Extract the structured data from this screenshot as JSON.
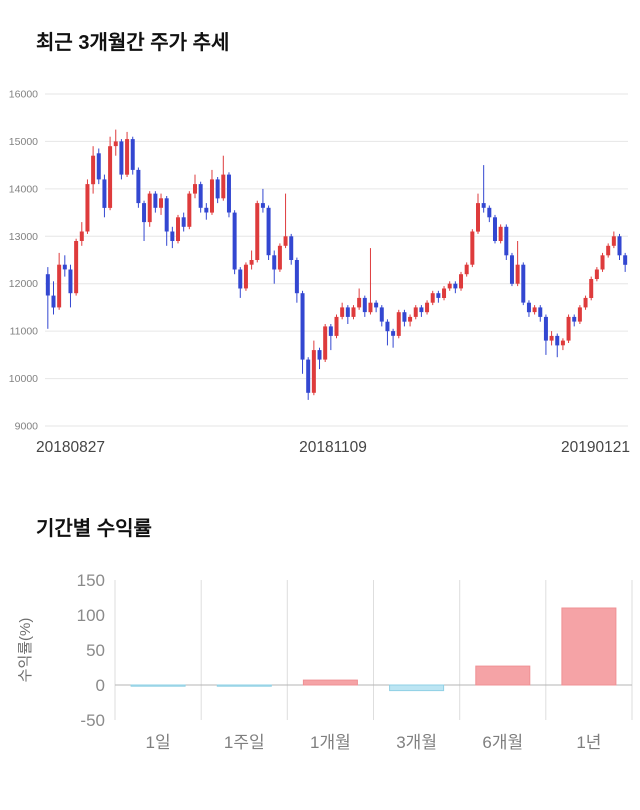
{
  "sections": {
    "price_trend": {
      "title": "최근 3개월간 주가 추세"
    },
    "period_returns": {
      "title": "기간별 수익률"
    }
  },
  "chart_data": [
    {
      "type": "candlestick",
      "title": "최근 3개월간 주가 추세",
      "ylim": [
        9000,
        16000
      ],
      "yticks": [
        9000,
        10000,
        11000,
        12000,
        13000,
        14000,
        15000,
        16000
      ],
      "xtick_labels": [
        "20180827",
        "20181109",
        "20190121"
      ],
      "up_color": "#de3b3c",
      "down_color": "#3347d1",
      "grid_color": "#e6e6e6",
      "axis_text_color": "#828282",
      "candles": [
        [
          12200,
          12350,
          11050,
          11750
        ],
        [
          11750,
          12050,
          11350,
          11500
        ],
        [
          11500,
          12650,
          11450,
          12400
        ],
        [
          12400,
          12600,
          12150,
          12300
        ],
        [
          12300,
          12400,
          11500,
          11800
        ],
        [
          11800,
          12950,
          11750,
          12900
        ],
        [
          12900,
          13300,
          12800,
          13100
        ],
        [
          13100,
          14200,
          13050,
          14100
        ],
        [
          14100,
          14900,
          13900,
          14700
        ],
        [
          14750,
          14850,
          14100,
          14200
        ],
        [
          14200,
          14300,
          13400,
          13600
        ],
        [
          13600,
          15100,
          13550,
          14900
        ],
        [
          14900,
          15250,
          14700,
          15000
        ],
        [
          15000,
          15050,
          14200,
          14300
        ],
        [
          14300,
          15200,
          14250,
          15050
        ],
        [
          15050,
          15100,
          14300,
          14400
        ],
        [
          14400,
          14450,
          13600,
          13700
        ],
        [
          13700,
          13750,
          12900,
          13300
        ],
        [
          13300,
          13950,
          13200,
          13900
        ],
        [
          13900,
          13950,
          13500,
          13600
        ],
        [
          13600,
          13900,
          13450,
          13800
        ],
        [
          13800,
          13850,
          12800,
          13100
        ],
        [
          13100,
          13200,
          12750,
          12900
        ],
        [
          12900,
          13450,
          12850,
          13400
        ],
        [
          13400,
          13500,
          13100,
          13200
        ],
        [
          13200,
          13950,
          13150,
          13900
        ],
        [
          13900,
          14300,
          13800,
          14100
        ],
        [
          14100,
          14150,
          13500,
          13600
        ],
        [
          13600,
          13700,
          13350,
          13500
        ],
        [
          13500,
          14400,
          13450,
          14200
        ],
        [
          14200,
          14250,
          13700,
          13800
        ],
        [
          13800,
          14700,
          13750,
          14300
        ],
        [
          14300,
          14350,
          13400,
          13500
        ],
        [
          13500,
          13550,
          12200,
          12300
        ],
        [
          12300,
          12350,
          11700,
          11900
        ],
        [
          11900,
          12450,
          11850,
          12400
        ],
        [
          12400,
          12700,
          12300,
          12500
        ],
        [
          12500,
          13750,
          12450,
          13700
        ],
        [
          13700,
          14000,
          13500,
          13600
        ],
        [
          13600,
          13650,
          12500,
          12600
        ],
        [
          12600,
          12700,
          12000,
          12300
        ],
        [
          12300,
          12850,
          12250,
          12800
        ],
        [
          12800,
          13900,
          12750,
          13000
        ],
        [
          13000,
          13050,
          12400,
          12500
        ],
        [
          12500,
          12550,
          11600,
          11800
        ],
        [
          11800,
          11850,
          10100,
          10400
        ],
        [
          10400,
          10450,
          9550,
          9700
        ],
        [
          9700,
          10800,
          9650,
          10600
        ],
        [
          10600,
          10650,
          10200,
          10400
        ],
        [
          10400,
          11150,
          10350,
          11100
        ],
        [
          11100,
          11150,
          10600,
          10900
        ],
        [
          10900,
          11350,
          10850,
          11300
        ],
        [
          11300,
          11600,
          11250,
          11500
        ],
        [
          11500,
          11550,
          11150,
          11300
        ],
        [
          11300,
          11550,
          11250,
          11500
        ],
        [
          11500,
          11900,
          11450,
          11700
        ],
        [
          11700,
          11750,
          11300,
          11400
        ],
        [
          11400,
          12750,
          11350,
          11600
        ],
        [
          11600,
          11650,
          11400,
          11500
        ],
        [
          11500,
          11550,
          11100,
          11200
        ],
        [
          11200,
          11250,
          10700,
          11000
        ],
        [
          11000,
          11050,
          10650,
          10900
        ],
        [
          10900,
          11450,
          10850,
          11400
        ],
        [
          11400,
          11450,
          11100,
          11200
        ],
        [
          11200,
          11350,
          11100,
          11300
        ],
        [
          11300,
          11550,
          11250,
          11500
        ],
        [
          11500,
          11550,
          11300,
          11400
        ],
        [
          11400,
          11650,
          11350,
          11600
        ],
        [
          11600,
          11850,
          11550,
          11800
        ],
        [
          11800,
          11850,
          11600,
          11700
        ],
        [
          11700,
          11950,
          11650,
          11900
        ],
        [
          11900,
          12050,
          11850,
          12000
        ],
        [
          12000,
          12050,
          11800,
          11900
        ],
        [
          11900,
          12250,
          11850,
          12200
        ],
        [
          12200,
          12450,
          12150,
          12400
        ],
        [
          12400,
          13150,
          12350,
          13100
        ],
        [
          13100,
          13900,
          13050,
          13700
        ],
        [
          13700,
          14500,
          13500,
          13600
        ],
        [
          13600,
          13650,
          13300,
          13400
        ],
        [
          13400,
          13450,
          12850,
          12900
        ],
        [
          12900,
          13250,
          12850,
          13200
        ],
        [
          13200,
          13250,
          12500,
          12600
        ],
        [
          12600,
          12650,
          11950,
          12000
        ],
        [
          12000,
          12900,
          11950,
          12400
        ],
        [
          12400,
          12450,
          11550,
          11600
        ],
        [
          11600,
          11650,
          11300,
          11400
        ],
        [
          11400,
          11550,
          11350,
          11500
        ],
        [
          11500,
          11550,
          11200,
          11300
        ],
        [
          11300,
          11350,
          10500,
          10800
        ],
        [
          10800,
          11000,
          10700,
          10900
        ],
        [
          10900,
          10950,
          10450,
          10700
        ],
        [
          10700,
          10850,
          10600,
          10800
        ],
        [
          10800,
          11350,
          10750,
          11300
        ],
        [
          11300,
          11350,
          11100,
          11200
        ],
        [
          11200,
          11550,
          11150,
          11500
        ],
        [
          11500,
          11750,
          11450,
          11700
        ],
        [
          11700,
          12150,
          11650,
          12100
        ],
        [
          12100,
          12350,
          12050,
          12300
        ],
        [
          12300,
          12650,
          12250,
          12600
        ],
        [
          12600,
          12850,
          12550,
          12800
        ],
        [
          12800,
          13100,
          12750,
          13000
        ],
        [
          13000,
          13050,
          12500,
          12600
        ],
        [
          12600,
          12650,
          12250,
          12400
        ]
      ]
    },
    {
      "type": "bar",
      "title": "기간별 수익률",
      "categories": [
        "1일",
        "1주일",
        "1개월",
        "3개월",
        "6개월",
        "1년"
      ],
      "values": [
        -0.4,
        -1,
        7,
        -8,
        27,
        110
      ],
      "ylabel": "수익률(%)",
      "ylim": [
        -50,
        150
      ],
      "yticks": [
        150,
        100,
        50,
        0,
        -50
      ],
      "positive_color": "#f5a3a6",
      "positive_border": "#ef9094",
      "negative_color": "#bce5f3",
      "negative_border": "#8fd0e4",
      "axis_text_color": "#8a8a8a"
    }
  ]
}
